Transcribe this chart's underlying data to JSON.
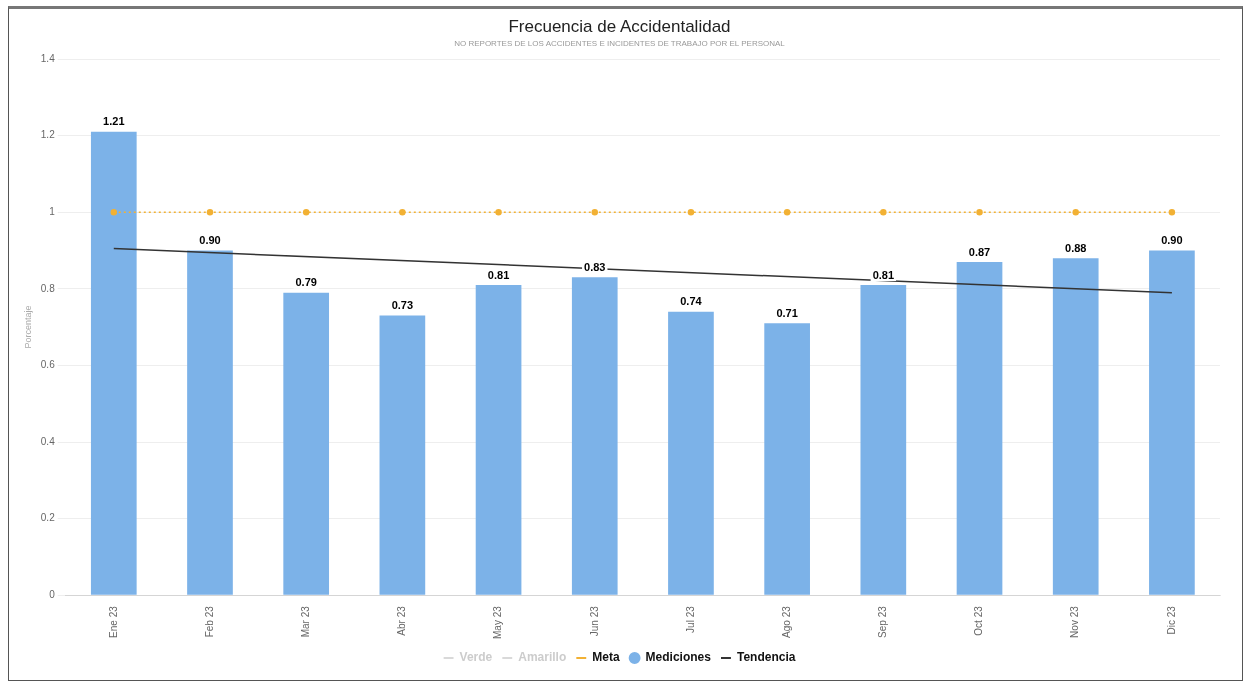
{
  "chart_data": {
    "type": "bar",
    "title": "Frecuencia de Accidentalidad",
    "subtitle": "NO REPORTES DE LOS ACCIDENTES E INCIDENTES DE TRABAJO POR EL PERSONAL",
    "ylabel": "Porcentaje",
    "categories": [
      "Ene 23",
      "Feb 23",
      "Mar 23",
      "Abr 23",
      "May 23",
      "Jun 23",
      "Jul 23",
      "Ago 23",
      "Sep 23",
      "Oct 23",
      "Nov 23",
      "Dic 23"
    ],
    "series": [
      {
        "name": "Verde",
        "type": "line",
        "color": "#d9d9d9",
        "values": [
          null,
          null,
          null,
          null,
          null,
          null,
          null,
          null,
          null,
          null,
          null,
          null
        ]
      },
      {
        "name": "Amarillo",
        "type": "line",
        "color": "#d9d9d9",
        "values": [
          null,
          null,
          null,
          null,
          null,
          null,
          null,
          null,
          null,
          null,
          null,
          null
        ]
      },
      {
        "name": "Meta",
        "type": "line",
        "color": "#f2b134",
        "marker": "circle",
        "line_style": "dotted",
        "values": [
          1,
          1,
          1,
          1,
          1,
          1,
          1,
          1,
          1,
          1,
          1,
          1
        ]
      },
      {
        "name": "Mediciones",
        "color": "#7cb2e8",
        "values": [
          1.21,
          0.9,
          0.79,
          0.73,
          0.81,
          0.83,
          0.74,
          0.71,
          0.81,
          0.87,
          0.88,
          0.9
        ],
        "value_labels": [
          "1.21",
          "0.90",
          "0.79",
          "0.73",
          "0.81",
          "0.83",
          "0.74",
          "0.71",
          "0.81",
          "0.87",
          "0.88",
          "0.90"
        ]
      },
      {
        "name": "Tendencia",
        "type": "line",
        "color": "#333333",
        "marker": "none",
        "values": [
          0.905,
          null,
          null,
          null,
          null,
          null,
          null,
          null,
          null,
          null,
          null,
          0.79
        ]
      }
    ],
    "ylim": [
      0,
      1.4
    ],
    "yticks": [
      0,
      0.2,
      0.4,
      0.6,
      0.8,
      1,
      1.2,
      1.4
    ],
    "grid": "y",
    "legend": "bottom"
  }
}
